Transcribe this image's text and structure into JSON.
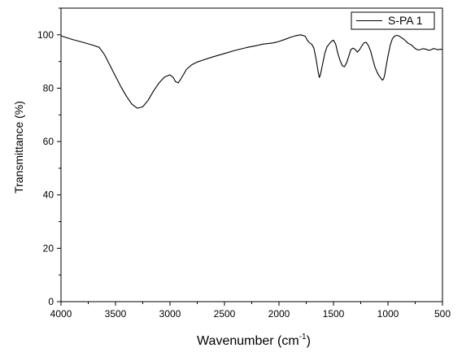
{
  "chart_data": {
    "type": "line",
    "xlabel": "Wavenumber (cm",
    "xlabel_superscript": "-1",
    "xlabel_suffix": ")",
    "ylabel": "Transmittance (%)",
    "xlim": [
      4000,
      500
    ],
    "ylim": [
      0,
      110
    ],
    "x_reversed": true,
    "x_ticks": [
      4000,
      3500,
      3000,
      2500,
      2000,
      1500,
      1000,
      500
    ],
    "y_ticks": [
      0,
      20,
      40,
      60,
      80,
      100
    ],
    "grid": false,
    "legend_position": "top-right",
    "series": [
      {
        "name": "S-PA 1",
        "color": "#000000",
        "x": [
          4000,
          3900,
          3800,
          3700,
          3650,
          3600,
          3550,
          3500,
          3450,
          3400,
          3350,
          3300,
          3250,
          3200,
          3150,
          3100,
          3050,
          3000,
          2970,
          2950,
          2925,
          2900,
          2870,
          2850,
          2800,
          2750,
          2700,
          2600,
          2500,
          2400,
          2300,
          2200,
          2150,
          2100,
          2050,
          2000,
          1950,
          1900,
          1850,
          1800,
          1760,
          1740,
          1720,
          1700,
          1680,
          1660,
          1640,
          1630,
          1620,
          1600,
          1580,
          1560,
          1540,
          1520,
          1500,
          1480,
          1460,
          1440,
          1420,
          1400,
          1380,
          1360,
          1340,
          1320,
          1300,
          1280,
          1260,
          1240,
          1220,
          1200,
          1180,
          1160,
          1140,
          1120,
          1100,
          1080,
          1060,
          1050,
          1040,
          1030,
          1020,
          1000,
          980,
          960,
          940,
          920,
          900,
          880,
          860,
          840,
          820,
          800,
          780,
          760,
          740,
          720,
          700,
          680,
          660,
          640,
          620,
          600,
          580,
          560,
          540,
          520,
          500
        ],
        "y": [
          99.6,
          98.3,
          97.2,
          96.0,
          95.3,
          92.5,
          88.5,
          84.5,
          80.5,
          77.0,
          74.0,
          72.5,
          73.0,
          75.5,
          79.0,
          82.0,
          84.2,
          85.0,
          84.0,
          82.5,
          82.0,
          83.5,
          85.5,
          87.0,
          88.8,
          89.8,
          90.5,
          91.8,
          93.0,
          94.2,
          95.2,
          96.0,
          96.5,
          96.7,
          97.0,
          97.5,
          98.2,
          99.0,
          99.6,
          100.0,
          99.5,
          98.0,
          97.0,
          96.5,
          95.0,
          91.0,
          86.0,
          84.0,
          85.0,
          89.0,
          93.0,
          95.5,
          96.5,
          97.5,
          98.0,
          96.5,
          93.0,
          90.5,
          88.5,
          88.0,
          89.5,
          92.0,
          94.5,
          95.0,
          94.5,
          93.5,
          94.5,
          95.8,
          97.0,
          97.2,
          96.0,
          94.0,
          91.0,
          88.0,
          86.0,
          84.5,
          83.5,
          83.0,
          83.5,
          85.0,
          87.5,
          92.0,
          96.0,
          98.5,
          99.5,
          99.8,
          99.6,
          99.0,
          98.5,
          97.8,
          97.0,
          96.5,
          96.0,
          95.2,
          94.6,
          94.3,
          94.5,
          94.8,
          94.7,
          94.4,
          94.2,
          94.5,
          94.9,
          94.6,
          94.4,
          94.6,
          94.5
        ]
      }
    ]
  }
}
